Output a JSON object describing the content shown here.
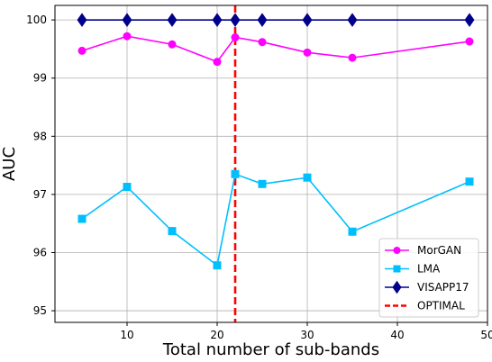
{
  "chart_data": {
    "type": "line",
    "title": "",
    "xlabel": "Total number of sub-bands",
    "ylabel": "AUC",
    "xlim": [
      2,
      50
    ],
    "ylim": [
      94.8,
      100.25
    ],
    "xticks": [
      10,
      20,
      30,
      40,
      50
    ],
    "yticks": [
      95,
      96,
      97,
      98,
      99,
      100
    ],
    "grid": true,
    "legend_position": "lower-right",
    "series": [
      {
        "name": "MorGAN",
        "color": "#ff00ff",
        "marker": "circle",
        "x": [
          5,
          10,
          15,
          20,
          22,
          25,
          30,
          35,
          48
        ],
        "y": [
          99.47,
          99.72,
          99.58,
          99.28,
          99.7,
          99.62,
          99.44,
          99.35,
          99.63
        ]
      },
      {
        "name": "LMA",
        "color": "#00bfff",
        "marker": "square",
        "x": [
          5,
          10,
          15,
          20,
          22,
          25,
          30,
          35,
          48
        ],
        "y": [
          96.58,
          97.13,
          96.37,
          95.78,
          97.35,
          97.18,
          97.29,
          96.36,
          97.22
        ]
      },
      {
        "name": "VISAPP17",
        "color": "#00008b",
        "marker": "diamond",
        "x": [
          5,
          10,
          15,
          20,
          22,
          25,
          30,
          35,
          48
        ],
        "y": [
          100,
          100,
          100,
          100,
          100,
          100,
          100,
          100,
          100
        ]
      }
    ],
    "vlines": [
      {
        "name": "OPTIMAL",
        "x": 22,
        "color": "#ff0000",
        "style": "dashed"
      }
    ]
  }
}
